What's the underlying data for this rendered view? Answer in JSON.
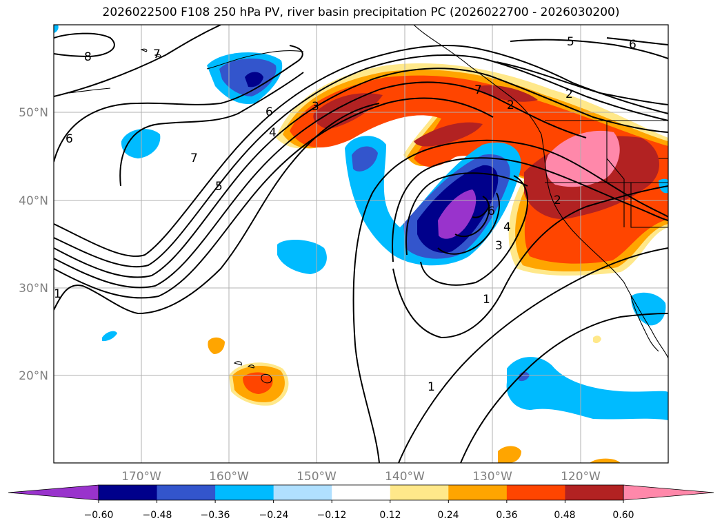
{
  "title": "2026022500 F108 250 hPa PV, river basin precipitation PC (2026022700 - 2026030200)",
  "lat_labels": [
    "50°N",
    "40°N",
    "30°N",
    "20°N"
  ],
  "lon_labels": [
    "170°W",
    "160°W",
    "150°W",
    "140°W",
    "130°W",
    "120°W"
  ],
  "colorbar": {
    "colors": [
      "#9933cc",
      "#00008b",
      "#3355cc",
      "#00bbff",
      "#b0e0ff",
      "#ffffff",
      "#ffe88a",
      "#ffa500",
      "#ff4500",
      "#b22222",
      "#ff88aa"
    ],
    "tick_labels": [
      "−0.60",
      "−0.48",
      "−0.36",
      "−0.24",
      "−0.12",
      "0.12",
      "0.24",
      "0.36",
      "0.48",
      "0.60"
    ]
  },
  "contour_labels": [
    "8",
    "7",
    "6",
    "5",
    "4",
    "3",
    "2",
    "1",
    "5",
    "6",
    "2",
    "7",
    "6",
    "4",
    "3",
    "2",
    "1",
    "1",
    "6",
    "7",
    "5",
    "4",
    "3",
    "1"
  ]
}
